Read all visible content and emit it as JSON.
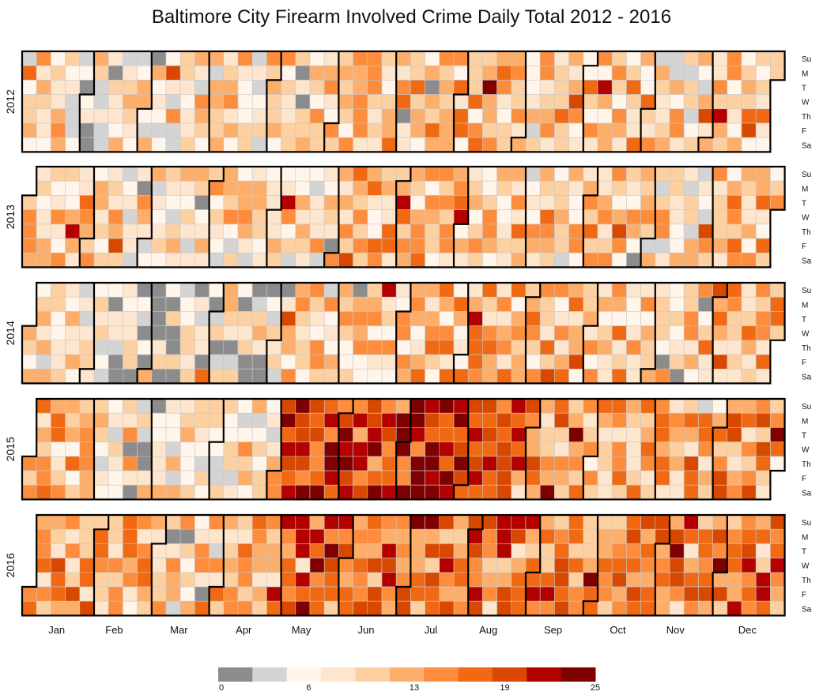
{
  "chart_data": {
    "type": "heatmap",
    "title": "Baltimore City Firearm Involved Crime Daily Total 2012 - 2016",
    "years": [
      "2012",
      "2013",
      "2014",
      "2015",
      "2016"
    ],
    "months": [
      "Jan",
      "Feb",
      "Mar",
      "Apr",
      "May",
      "Jun",
      "Jul",
      "Aug",
      "Sep",
      "Oct",
      "Nov",
      "Dec"
    ],
    "weekdays": [
      "Su",
      "M",
      "T",
      "W",
      "Th",
      "F",
      "Sa"
    ],
    "value_range": [
      0,
      25
    ],
    "legend_ticks": [
      "0",
      "6",
      "13",
      "19",
      "25"
    ],
    "color_scale": [
      "#8c8c8c",
      "#d4d4d4",
      "#fff5eb",
      "#fee6ce",
      "#fdd0a2",
      "#fdae6b",
      "#fd8d3c",
      "#f16913",
      "#d94801",
      "#b30000",
      "#7f0000"
    ],
    "monthly_typical_level": {
      "2012": [
        8,
        7,
        8,
        9,
        10,
        12,
        11,
        12,
        11,
        11,
        9,
        11
      ],
      "2013": [
        10,
        8,
        8,
        10,
        10,
        11,
        11,
        11,
        9,
        10,
        9,
        11
      ],
      "2014": [
        8,
        6,
        6,
        6,
        9,
        11,
        11,
        12,
        11,
        11,
        10,
        13
      ],
      "2015": [
        11,
        8,
        8,
        8,
        20,
        19,
        21,
        17,
        13,
        12,
        13,
        14
      ],
      "2016": [
        13,
        11,
        10,
        12,
        18,
        16,
        16,
        16,
        15,
        15,
        15,
        15
      ]
    }
  }
}
